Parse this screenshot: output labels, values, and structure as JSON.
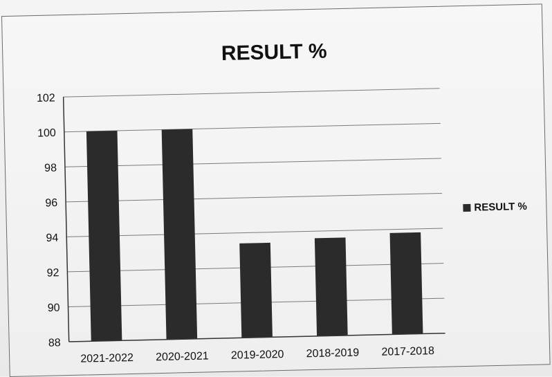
{
  "chart_data": {
    "type": "bar",
    "title": "RESULT %",
    "categories": [
      "2021-2022",
      "2020-2021",
      "2019-2020",
      "2018-2019",
      "2017-2018"
    ],
    "series": [
      {
        "name": "RESULT %",
        "values": [
          100,
          100,
          93.4,
          93.6,
          93.8
        ]
      }
    ],
    "ylim": [
      88,
      102
    ],
    "yticks": [
      88,
      90,
      92,
      94,
      96,
      98,
      100,
      102
    ],
    "grid": true,
    "legend_position": "right",
    "bar_color": "#2b2b2b"
  }
}
